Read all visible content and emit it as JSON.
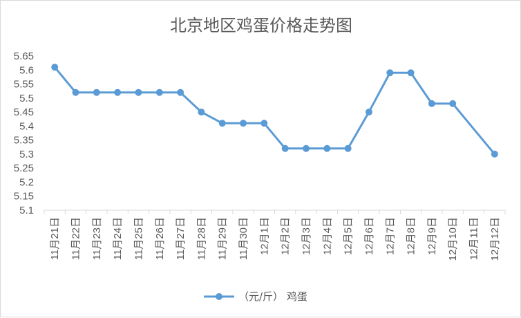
{
  "chart_data": {
    "type": "line",
    "title": "北京地区鸡蛋价格走势图",
    "xlabel": "",
    "ylabel": "",
    "categories": [
      "11月21日",
      "11月22日",
      "11月23日",
      "11月24日",
      "11月25日",
      "11月26日",
      "11月27日",
      "11月28日",
      "11月29日",
      "11月30日",
      "12月1日",
      "12月2日",
      "12月3日",
      "12月4日",
      "12月5日",
      "12月6日",
      "12月7日",
      "12月8日",
      "12月9日",
      "12月10日",
      "12月11日",
      "12月12日"
    ],
    "series": [
      {
        "name": "（元/斤） 鸡蛋",
        "color": "#5b9bd5",
        "values": [
          5.61,
          5.52,
          5.52,
          5.52,
          5.52,
          5.52,
          5.52,
          5.45,
          5.41,
          5.41,
          5.41,
          5.32,
          5.32,
          5.32,
          5.32,
          5.45,
          5.59,
          5.59,
          5.48,
          5.48,
          null,
          5.3
        ],
        "interpolate_gaps": true
      }
    ],
    "ylim": [
      5.1,
      5.65
    ],
    "yticks": [
      "5.1",
      "5.15",
      "5.2",
      "5.25",
      "5.3",
      "5.35",
      "5.4",
      "5.45",
      "5.5",
      "5.55",
      "5.6",
      "5.65"
    ],
    "grid": false,
    "legend": "bottom"
  }
}
